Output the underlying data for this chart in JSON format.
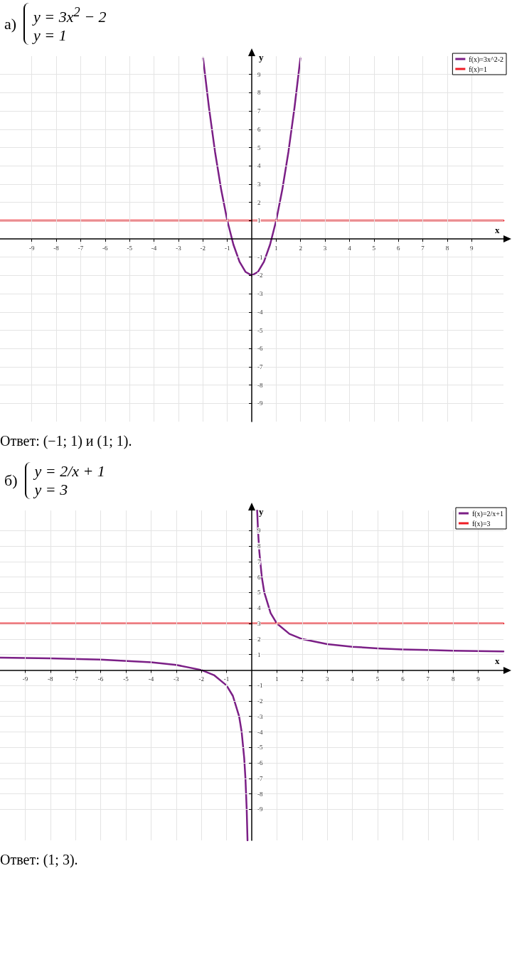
{
  "chart_data": [
    {
      "type": "line",
      "title": "а)",
      "subtitle": "y = 3x$^{2}$ − 2\ny = 1",
      "xlabel": "x",
      "ylabel": "y",
      "annotations": [
        "Ответ: (−1; 1) и (1; 1)."
      ],
      "xlim": [
        -10.3,
        10.3
      ],
      "ylim": [
        -10,
        10
      ],
      "xticks": [
        -9,
        -8,
        -7,
        -6,
        -5,
        -4,
        -3,
        -2,
        -1,
        1,
        2,
        3,
        4,
        5,
        6,
        7,
        8,
        9
      ],
      "yticks": [
        -9,
        -8,
        -7,
        -6,
        -5,
        -4,
        -3,
        -2,
        -1,
        1,
        2,
        3,
        4,
        5,
        6,
        7,
        8,
        9
      ],
      "grid": true,
      "legend": "top right",
      "marker": "none",
      "line_style": "solid",
      "series": [
        {
          "name": "f(x)=3x^2-2",
          "color": "#7b1f86",
          "x": [
            -1.99,
            -1.75,
            -1.5,
            -1.25,
            -1,
            -0.75,
            -0.5,
            -0.25,
            0,
            0.25,
            0.5,
            0.75,
            1,
            1.25,
            1.5,
            1.75,
            1.99
          ],
          "values": [
            9.88,
            7.19,
            4.75,
            2.69,
            1,
            -0.31,
            -1.25,
            -1.81,
            -2,
            -1.81,
            -1.25,
            -0.31,
            1,
            2.69,
            4.75,
            7.19,
            9.88
          ]
        },
        {
          "name": "f(x)=1",
          "color": "#ee1c24",
          "x": [
            -10.3,
            10.3
          ],
          "values": [
            1,
            1
          ]
        }
      ]
    },
    {
      "type": "line",
      "title": "б)",
      "subtitle": "y = 2/x + 1\ny = 3",
      "xlabel": "x",
      "ylabel": "y",
      "annotations": [
        "Ответ: (1; 3)."
      ],
      "xlim": [
        -10,
        10
      ],
      "ylim": [
        -11,
        10.3
      ],
      "xticks": [
        -9,
        -8,
        -7,
        -6,
        -5,
        -4,
        -3,
        -2,
        -1,
        1,
        2,
        3,
        4,
        5,
        6,
        7,
        8,
        9
      ],
      "yticks": [
        -9,
        -8,
        -7,
        -6,
        -5,
        -4,
        -3,
        -2,
        -1,
        1,
        2,
        3,
        4,
        5,
        6,
        7,
        8,
        9
      ],
      "grid": true,
      "legend": "top right",
      "marker": "none",
      "line_style": "solid",
      "series": [
        {
          "name": "f(x)=2/x+1",
          "color": "#7b1f86",
          "x": [
            -10,
            -8,
            -6,
            -4,
            -3,
            -2,
            -1.5,
            -1,
            -0.75,
            -0.5,
            -0.4,
            -0.3,
            -0.25,
            -0.2,
            -0.167,
            0,
            0.215,
            0.25,
            0.3,
            0.4,
            0.5,
            0.75,
            1,
            1.5,
            2,
            3,
            4,
            5,
            6,
            7,
            8,
            10
          ],
          "values": [
            0.8,
            0.75,
            0.67,
            0.5,
            0.33,
            0,
            -0.33,
            -1,
            -1.67,
            -3,
            -4,
            -5.67,
            -7,
            -9,
            -11,
            null,
            10.3,
            9,
            7.67,
            6,
            5,
            3.67,
            3,
            2.33,
            2,
            1.67,
            1.5,
            1.4,
            1.33,
            1.29,
            1.25,
            1.2
          ]
        },
        {
          "name": "f(x)=3",
          "color": "#ee1c24",
          "x": [
            -10,
            10
          ],
          "values": [
            3,
            3
          ]
        }
      ]
    }
  ]
}
